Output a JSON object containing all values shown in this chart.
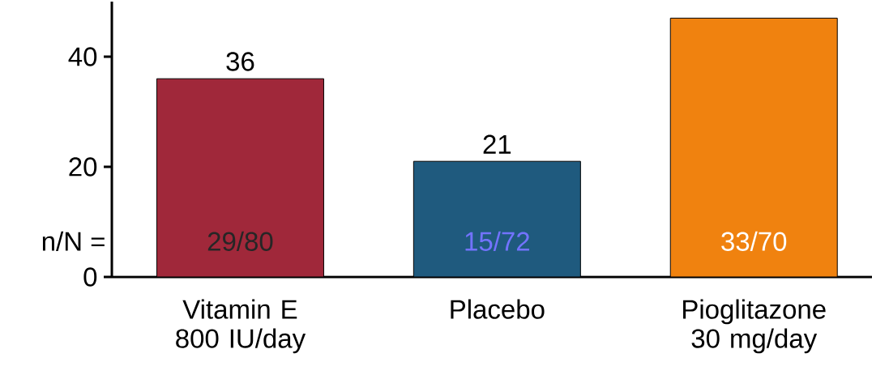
{
  "chart_data": {
    "type": "bar",
    "categories": [
      "Vitamin E 800 IU/day",
      "Placebo",
      "Pioglitazone 30 mg/day"
    ],
    "values": [
      36,
      21,
      47
    ],
    "colors": [
      "#a0283a",
      "#1f5a7e",
      "#f0820f"
    ],
    "value_labels": [
      "36",
      "21",
      null
    ],
    "ylim": [
      0,
      50
    ],
    "yticks": [
      0,
      20,
      40
    ],
    "annotations": [
      "n/N =",
      "29/80",
      "15/72",
      "33/70"
    ]
  }
}
